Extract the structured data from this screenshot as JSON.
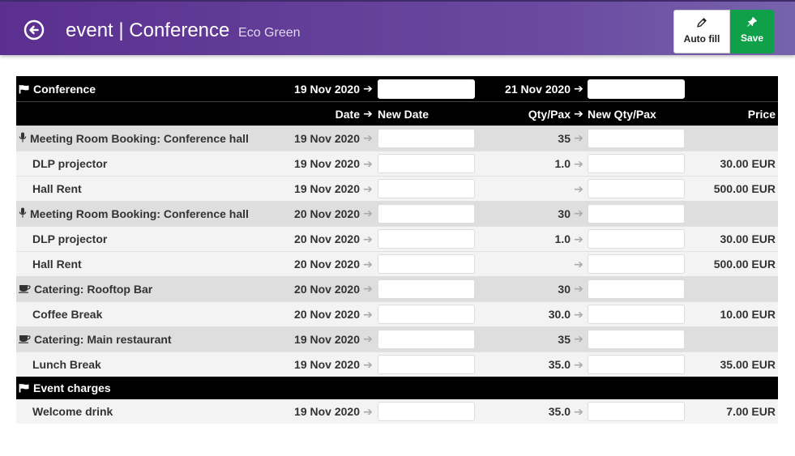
{
  "header": {
    "title": "event | Conference",
    "subtitle": "Eco Green",
    "autofill_label": "Auto fill",
    "save_label": "Save"
  },
  "colors": {
    "header_start": "#5b2f8f",
    "header_end": "#7763ad",
    "save": "#10a049"
  },
  "event_bar": {
    "name": "Conference",
    "date_from": "19 Nov 2020",
    "date_to": "21 Nov 2020"
  },
  "columns": {
    "date": "Date",
    "new_date": "New Date",
    "qty": "Qty/Pax",
    "new_qty": "New Qty/Pax",
    "price": "Price"
  },
  "rows": [
    {
      "type": "group",
      "icon": "microphone-icon",
      "name": "Meeting Room Booking: Conference hall",
      "date": "19 Nov 2020",
      "qty": "35",
      "price": ""
    },
    {
      "type": "item",
      "name": "DLP projector",
      "date": "19 Nov 2020",
      "qty": "1.0",
      "price": "30.00 EUR"
    },
    {
      "type": "item",
      "name": "Hall Rent",
      "date": "19 Nov 2020",
      "qty": "",
      "price": "500.00 EUR"
    },
    {
      "type": "group",
      "icon": "microphone-icon",
      "name": "Meeting Room Booking: Conference hall",
      "date": "20 Nov 2020",
      "qty": "30",
      "price": ""
    },
    {
      "type": "item",
      "name": "DLP projector",
      "date": "20 Nov 2020",
      "qty": "1.0",
      "price": "30.00 EUR"
    },
    {
      "type": "item",
      "name": "Hall Rent",
      "date": "20 Nov 2020",
      "qty": "",
      "price": "500.00 EUR"
    },
    {
      "type": "group",
      "icon": "coffee-cup-icon",
      "name": "Catering: Rooftop Bar",
      "date": "20 Nov 2020",
      "qty": "30",
      "price": ""
    },
    {
      "type": "item",
      "name": "Coffee Break",
      "date": "20 Nov 2020",
      "qty": "30.0",
      "price": "10.00 EUR"
    },
    {
      "type": "group",
      "icon": "coffee-cup-icon",
      "name": "Catering: Main restaurant",
      "date": "19 Nov 2020",
      "qty": "35",
      "price": ""
    },
    {
      "type": "item",
      "name": "Lunch Break",
      "date": "19 Nov 2020",
      "qty": "35.0",
      "price": "35.00 EUR"
    }
  ],
  "charges_bar": {
    "name": "Event charges"
  },
  "charges": [
    {
      "type": "item",
      "name": "Welcome drink",
      "date": "19 Nov 2020",
      "qty": "35.0",
      "price": "7.00 EUR"
    }
  ]
}
